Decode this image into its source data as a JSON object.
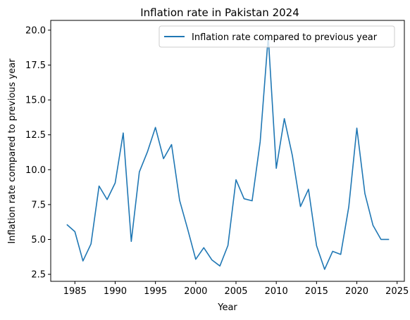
{
  "chart_data": {
    "type": "line",
    "title": "Inflation rate in Pakistan 2024",
    "xlabel": "Year",
    "ylabel": "Inflation rate compared to previous year",
    "xlim": [
      1982.0,
      2025.9
    ],
    "ylim": [
      2.0,
      20.7
    ],
    "xticks": [
      1985,
      1990,
      1995,
      2000,
      2005,
      2010,
      2015,
      2020,
      2025
    ],
    "yticks": [
      2.5,
      5.0,
      7.5,
      10.0,
      12.5,
      15.0,
      17.5,
      20.0
    ],
    "grid": false,
    "legend_position": "top-right",
    "series": [
      {
        "name": "Inflation rate compared to previous year",
        "color": "#1f77b4",
        "x": [
          1984,
          1985,
          1986,
          1987,
          1988,
          1989,
          1990,
          1991,
          1992,
          1993,
          1994,
          1995,
          1996,
          1997,
          1998,
          1999,
          2000,
          2001,
          2002,
          2003,
          2004,
          2005,
          2006,
          2007,
          2008,
          2009,
          2010,
          2011,
          2012,
          2013,
          2014,
          2015,
          2016,
          2017,
          2018,
          2019,
          2020,
          2021,
          2022,
          2023,
          2024
        ],
        "y": [
          6.07,
          5.56,
          3.46,
          4.68,
          8.83,
          7.86,
          9.05,
          12.63,
          4.86,
          9.84,
          11.27,
          13.03,
          10.79,
          11.8,
          7.8,
          5.74,
          3.58,
          4.41,
          3.54,
          3.1,
          4.57,
          9.28,
          7.92,
          7.77,
          12.0,
          19.56,
          10.1,
          13.66,
          11.0,
          7.36,
          8.6,
          4.55,
          2.86,
          4.15,
          3.93,
          7.34,
          12.98,
          8.29,
          6.02,
          5.0,
          5.0
        ]
      }
    ]
  }
}
